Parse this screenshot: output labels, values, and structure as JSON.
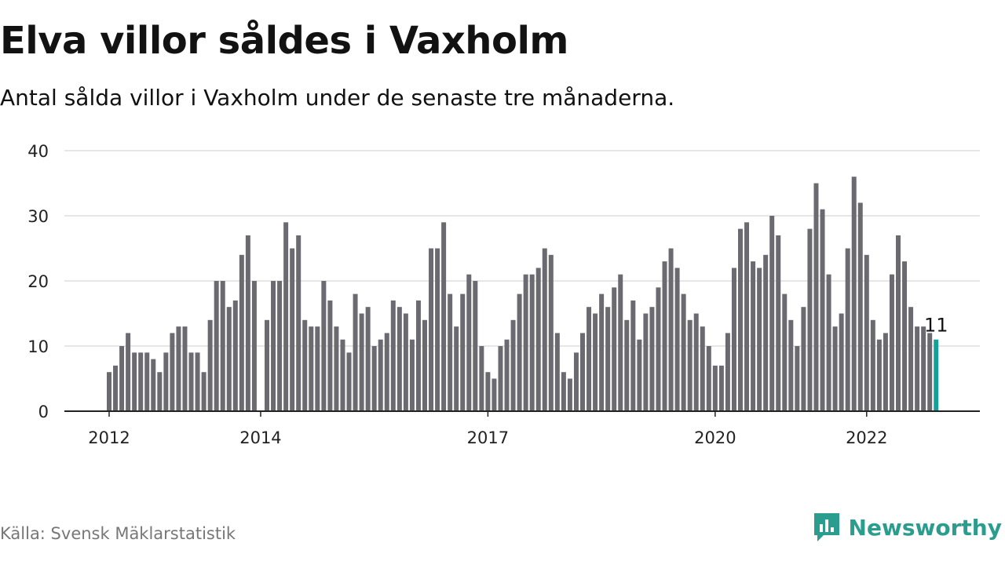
{
  "title": "Elva villor såldes i Vaxholm",
  "subtitle": "Antal sålda villor i Vaxholm under de senaste tre månaderna.",
  "source": "Källa: Svensk Mäklarstatistik",
  "brand": {
    "name": "Newsworthy",
    "icon": "newsworthy-logo-icon"
  },
  "colors": {
    "bar": "#6b6a70",
    "highlight": "#14a098",
    "grid": "#dddddd",
    "axis": "#222222",
    "brand": "#2a9d8f"
  },
  "chart_data": {
    "type": "bar",
    "title": "Elva villor såldes i Vaxholm",
    "subtitle": "Antal sålda villor i Vaxholm under de senaste tre månaderna.",
    "xlabel": "",
    "ylabel": "",
    "ylim": [
      0,
      40
    ],
    "yticks": [
      0,
      10,
      20,
      30,
      40
    ],
    "grid": true,
    "x_tick_labels": [
      {
        "label": "2012",
        "index": 0
      },
      {
        "label": "2014",
        "index": 24
      },
      {
        "label": "2017",
        "index": 60
      },
      {
        "label": "2020",
        "index": 96
      },
      {
        "label": "2022",
        "index": 120
      }
    ],
    "values": [
      6,
      7,
      10,
      12,
      9,
      9,
      9,
      8,
      6,
      9,
      12,
      13,
      13,
      9,
      9,
      6,
      14,
      20,
      20,
      16,
      17,
      24,
      27,
      20,
      null,
      14,
      20,
      20,
      29,
      25,
      27,
      14,
      13,
      13,
      20,
      17,
      13,
      11,
      9,
      18,
      15,
      16,
      10,
      11,
      12,
      17,
      16,
      15,
      11,
      17,
      14,
      25,
      25,
      29,
      18,
      13,
      18,
      21,
      20,
      10,
      6,
      5,
      10,
      11,
      14,
      18,
      21,
      21,
      22,
      25,
      24,
      12,
      6,
      5,
      9,
      12,
      16,
      15,
      18,
      16,
      19,
      21,
      14,
      17,
      11,
      15,
      16,
      19,
      23,
      25,
      22,
      18,
      14,
      15,
      13,
      10,
      7,
      7,
      12,
      22,
      28,
      29,
      23,
      22,
      24,
      30,
      27,
      18,
      14,
      10,
      16,
      28,
      35,
      31,
      21,
      13,
      15,
      25,
      36,
      32,
      24,
      14,
      11,
      12,
      21,
      27,
      23,
      16,
      13,
      13,
      12,
      11
    ],
    "highlight_last": true,
    "highlight_label": "11"
  }
}
